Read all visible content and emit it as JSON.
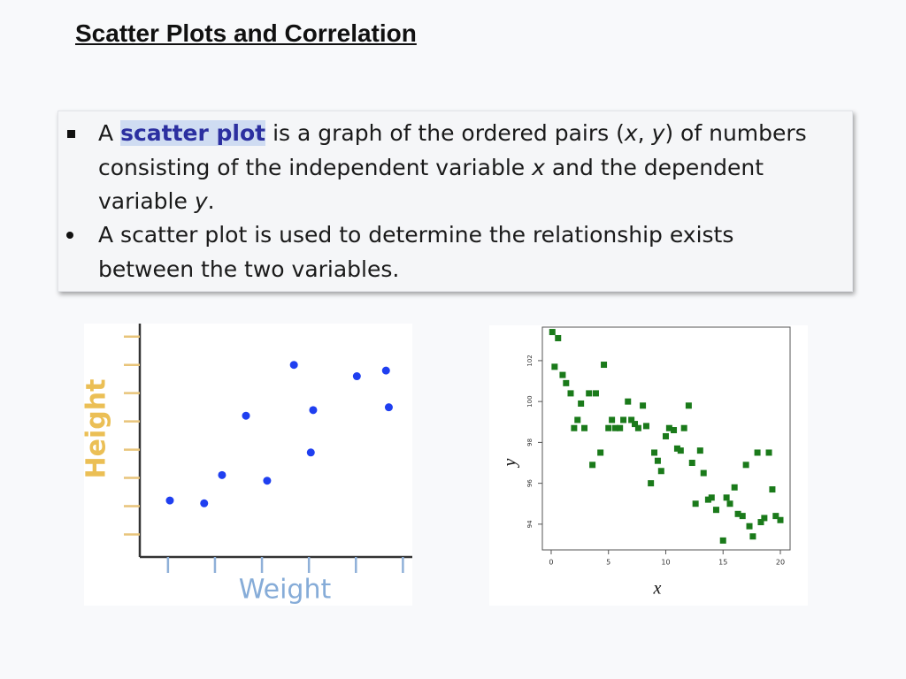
{
  "title": "Scatter Plots and Correlation",
  "bullets": [
    {
      "parts": [
        "A ",
        "scatter plot",
        " is a graph of the ordered pairs (",
        "x",
        ", ",
        "y",
        ") of numbers consisting of the independent variable ",
        "x",
        " and the dependent variable ",
        "y",
        "."
      ]
    },
    {
      "parts": [
        "A scatter plot is used to determine the relationship exists between the two variables."
      ]
    }
  ],
  "chart_data": [
    {
      "type": "scatter",
      "x_label": "Weight",
      "y_label": "Height",
      "color": "#1f3ff0",
      "marker": "circle",
      "x": [
        1.04,
        1.77,
        2.15,
        2.66,
        3.11,
        3.68,
        4.04,
        4.09,
        5.02,
        5.64,
        5.7
      ],
      "values": [
        2.2,
        2.1,
        3.1,
        5.2,
        2.9,
        7.0,
        3.9,
        5.4,
        6.6,
        6.8,
        5.5
      ],
      "xlim": [
        0.4,
        6.2
      ],
      "xticks": [
        1,
        2,
        3,
        4,
        5,
        6
      ],
      "ylim": [
        0.2,
        8.4
      ],
      "yticks": [
        1,
        2,
        3,
        4,
        5,
        6,
        7,
        8
      ]
    },
    {
      "type": "scatter",
      "x_label": "x",
      "y_label": "y",
      "color": "#1a7a1a",
      "marker": "square",
      "x": [
        0.1,
        0.6,
        0.3,
        1.0,
        1.3,
        1.7,
        2.0,
        2.3,
        2.6,
        2.9,
        3.3,
        3.6,
        3.9,
        4.3,
        4.6,
        5.0,
        5.3,
        5.6,
        6.0,
        6.3,
        6.7,
        7.0,
        7.3,
        7.6,
        8.0,
        8.3,
        8.7,
        9.0,
        9.3,
        9.6,
        10.0,
        10.3,
        10.7,
        11.0,
        11.3,
        11.6,
        12.0,
        12.3,
        12.6,
        13.0,
        13.3,
        13.7,
        14.0,
        14.4,
        15.0,
        15.3,
        15.6,
        16.0,
        16.3,
        16.7,
        17.0,
        17.3,
        17.6,
        18.0,
        18.3,
        18.6,
        19.0,
        19.3,
        19.6,
        20.0
      ],
      "values": [
        103.4,
        103.1,
        101.7,
        101.3,
        100.9,
        100.4,
        98.7,
        99.1,
        99.9,
        98.7,
        100.4,
        96.9,
        100.4,
        97.5,
        101.8,
        98.7,
        99.1,
        98.7,
        98.7,
        99.1,
        100.0,
        99.1,
        98.9,
        98.7,
        99.8,
        98.8,
        96.0,
        97.5,
        97.1,
        96.6,
        98.3,
        98.7,
        98.6,
        97.7,
        97.6,
        98.7,
        99.8,
        97.0,
        95.0,
        97.6,
        96.5,
        95.2,
        95.3,
        94.7,
        93.2,
        95.3,
        95.0,
        95.8,
        94.5,
        94.4,
        96.9,
        93.9,
        93.4,
        97.5,
        94.1,
        94.3,
        97.5,
        95.7,
        94.4,
        94.2
      ],
      "xlim": [
        -0.77,
        20.85
      ],
      "xticks": [
        0,
        5,
        10,
        15,
        20
      ],
      "ylim": [
        92.74,
        103.64
      ],
      "yticks": [
        94,
        96,
        98,
        100,
        102
      ]
    }
  ]
}
